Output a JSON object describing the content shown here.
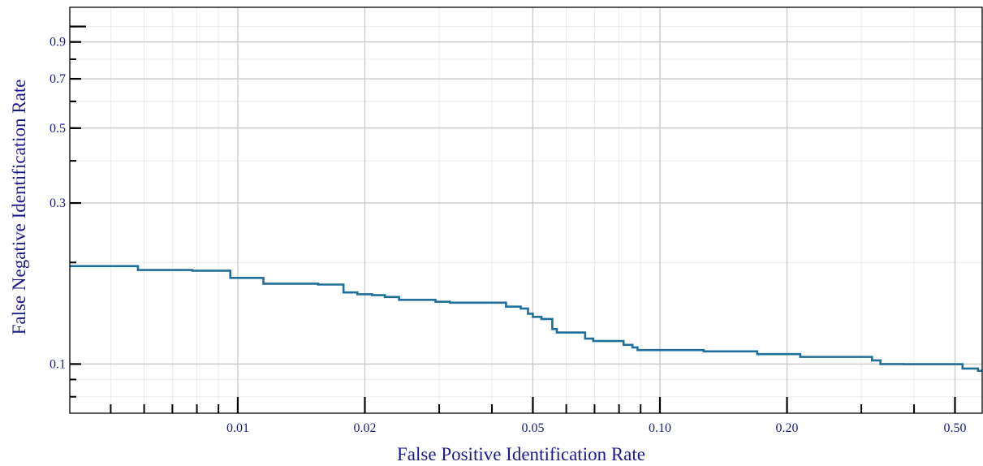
{
  "chart_data": {
    "type": "line",
    "title": "",
    "xlabel": "False Positive Identification Rate",
    "ylabel": "False Negative Identification Rate",
    "xscale": "log",
    "yscale": "log",
    "xlim": [
      0.004,
      0.58
    ],
    "ylim": [
      0.0715,
      1.14
    ],
    "grid": true,
    "legend": "none",
    "x_ticks": [
      {
        "value": 0.01,
        "label": "0.01"
      },
      {
        "value": 0.02,
        "label": "0.02"
      },
      {
        "value": 0.05,
        "label": "0.05"
      },
      {
        "value": 0.1,
        "label": "0.10"
      },
      {
        "value": 0.2,
        "label": "0.20"
      },
      {
        "value": 0.5,
        "label": "0.50"
      }
    ],
    "y_ticks": [
      {
        "value": 0.1,
        "label": "0.1"
      },
      {
        "value": 0.3,
        "label": "0.3"
      },
      {
        "value": 0.5,
        "label": "0.5"
      },
      {
        "value": 0.7,
        "label": "0.7"
      },
      {
        "value": 0.9,
        "label": "0.9"
      }
    ],
    "series": [
      {
        "color": "#1f6f9a",
        "x": [
          0.004,
          0.0058,
          0.0058,
          0.0078,
          0.0078,
          0.0096,
          0.0096,
          0.0115,
          0.0115,
          0.0155,
          0.0155,
          0.0178,
          0.0178,
          0.0192,
          0.0192,
          0.0208,
          0.0208,
          0.0223,
          0.0223,
          0.0241,
          0.0241,
          0.0294,
          0.0294,
          0.0318,
          0.0318,
          0.0432,
          0.0432,
          0.0468,
          0.0468,
          0.0487,
          0.0487,
          0.05,
          0.05,
          0.0524,
          0.0524,
          0.0556,
          0.0556,
          0.057,
          0.057,
          0.0665,
          0.0665,
          0.0695,
          0.0695,
          0.082,
          0.082,
          0.0861,
          0.0861,
          0.0885,
          0.0885,
          0.127,
          0.127,
          0.17,
          0.17,
          0.215,
          0.215,
          0.318,
          0.318,
          0.333,
          0.333,
          0.377,
          0.377,
          0.521,
          0.521,
          0.567,
          0.567,
          0.58
        ],
        "y": [
          0.195,
          0.195,
          0.19,
          0.19,
          0.189,
          0.189,
          0.18,
          0.18,
          0.173,
          0.173,
          0.172,
          0.172,
          0.163,
          0.163,
          0.161,
          0.161,
          0.16,
          0.16,
          0.158,
          0.158,
          0.155,
          0.155,
          0.153,
          0.153,
          0.152,
          0.152,
          0.148,
          0.148,
          0.146,
          0.146,
          0.141,
          0.141,
          0.138,
          0.138,
          0.136,
          0.136,
          0.127,
          0.127,
          0.124,
          0.124,
          0.119,
          0.119,
          0.117,
          0.117,
          0.114,
          0.114,
          0.112,
          0.112,
          0.11,
          0.11,
          0.109,
          0.109,
          0.107,
          0.107,
          0.105,
          0.105,
          0.1025,
          0.1025,
          0.1,
          0.1,
          0.0999,
          0.0999,
          0.097,
          0.097,
          0.0955,
          0.0955
        ]
      }
    ]
  },
  "colors": {
    "axis": "#000000",
    "grid_major": "#c9c9c9",
    "grid_minor": "#ebebeb",
    "tick_label": "#1a1a8c",
    "axis_label": "#1a1a8c"
  }
}
